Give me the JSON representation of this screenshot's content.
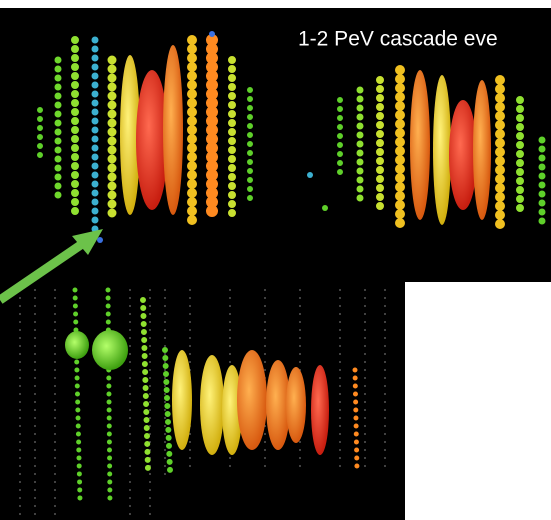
{
  "caption": {
    "text": "1-2 PeV cascade eve"
  }
}
